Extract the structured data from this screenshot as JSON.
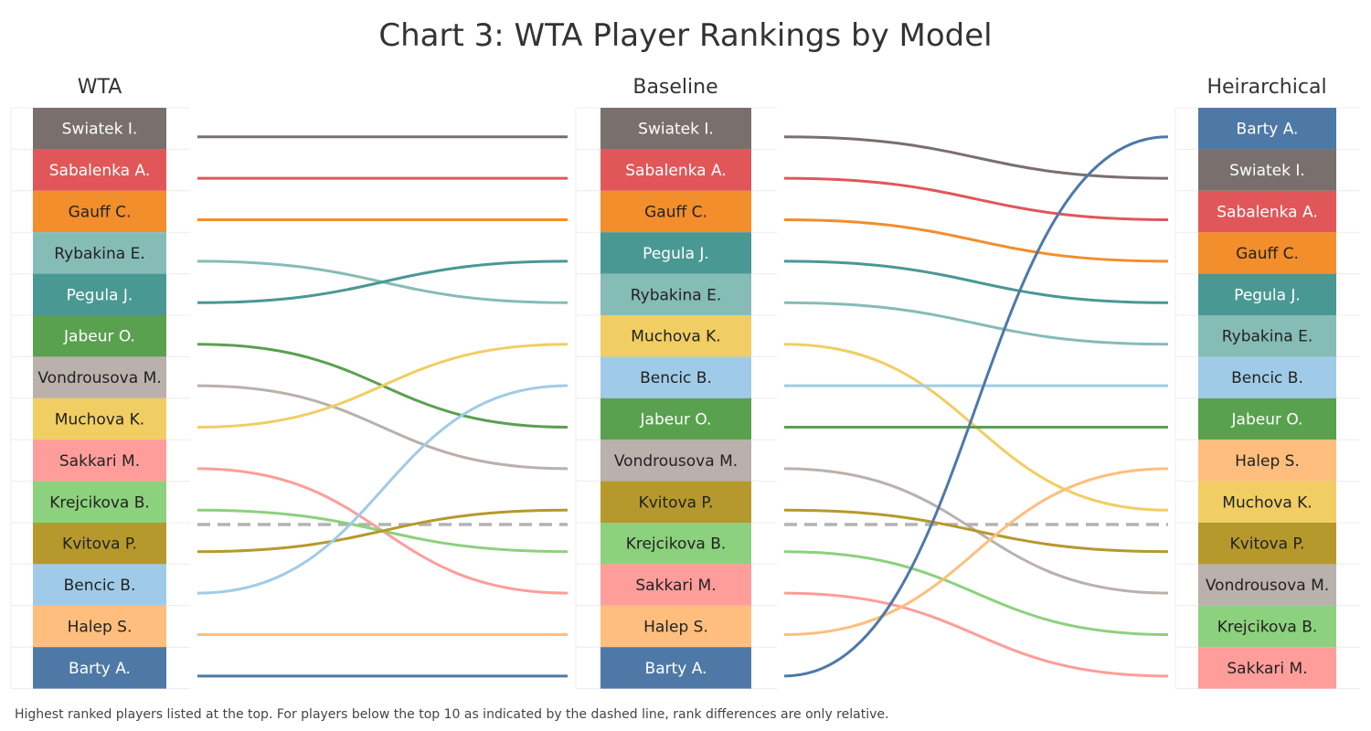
{
  "chart_data": {
    "type": "bump",
    "title": "Chart 3: WTA Player Rankings by Model",
    "footnote": "Highest ranked players listed at the top. For players below the top 10 as indicated by the dashed line, rank differences are only relative.",
    "columns": [
      {
        "name": "WTA",
        "players": [
          "Swiatek I.",
          "Sabalenka A.",
          "Gauff C.",
          "Rybakina E.",
          "Pegula J.",
          "Jabeur O.",
          "Vondrousova M.",
          "Muchova K.",
          "Sakkari M.",
          "Krejcikova B.",
          "Kvitova P.",
          "Bencic B.",
          "Halep S.",
          "Barty A."
        ]
      },
      {
        "name": "Baseline",
        "players": [
          "Swiatek I.",
          "Sabalenka A.",
          "Gauff C.",
          "Pegula J.",
          "Rybakina E.",
          "Muchova K.",
          "Bencic B.",
          "Jabeur O.",
          "Vondrousova M.",
          "Kvitova P.",
          "Krejcikova B.",
          "Sakkari M.",
          "Halep S.",
          "Barty A."
        ]
      },
      {
        "name": "Heirarchical",
        "players": [
          "Barty A.",
          "Swiatek I.",
          "Sabalenka A.",
          "Gauff C.",
          "Pegula J.",
          "Rybakina E.",
          "Bencic B.",
          "Jabeur O.",
          "Halep S.",
          "Muchova K.",
          "Kvitova P.",
          "Vondrousova M.",
          "Krejcikova B.",
          "Sakkari M."
        ]
      }
    ],
    "top_n_cutoff": 10,
    "colors": {
      "Swiatek I.": "#79706e",
      "Sabalenka A.": "#e15759",
      "Gauff C.": "#f28e2b",
      "Rybakina E.": "#86bcb6",
      "Pegula J.": "#499894",
      "Jabeur O.": "#59a14f",
      "Vondrousova M.": "#bab0ac",
      "Muchova K.": "#f1ce63",
      "Sakkari M.": "#ff9d9a",
      "Krejcikova B.": "#8cd17d",
      "Kvitova P.": "#b6992d",
      "Bencic B.": "#a0cbe8",
      "Halep S.": "#ffbe7d",
      "Barty A.": "#4e79a7"
    },
    "dark_text_players": [
      "Gauff C.",
      "Rybakina E.",
      "Vondrousova M.",
      "Muchova K.",
      "Sakkari M.",
      "Krejcikova B.",
      "Kvitova P.",
      "Bencic B.",
      "Halep S."
    ],
    "dashed_line_color": "#b3b3b3",
    "grid": true
  }
}
